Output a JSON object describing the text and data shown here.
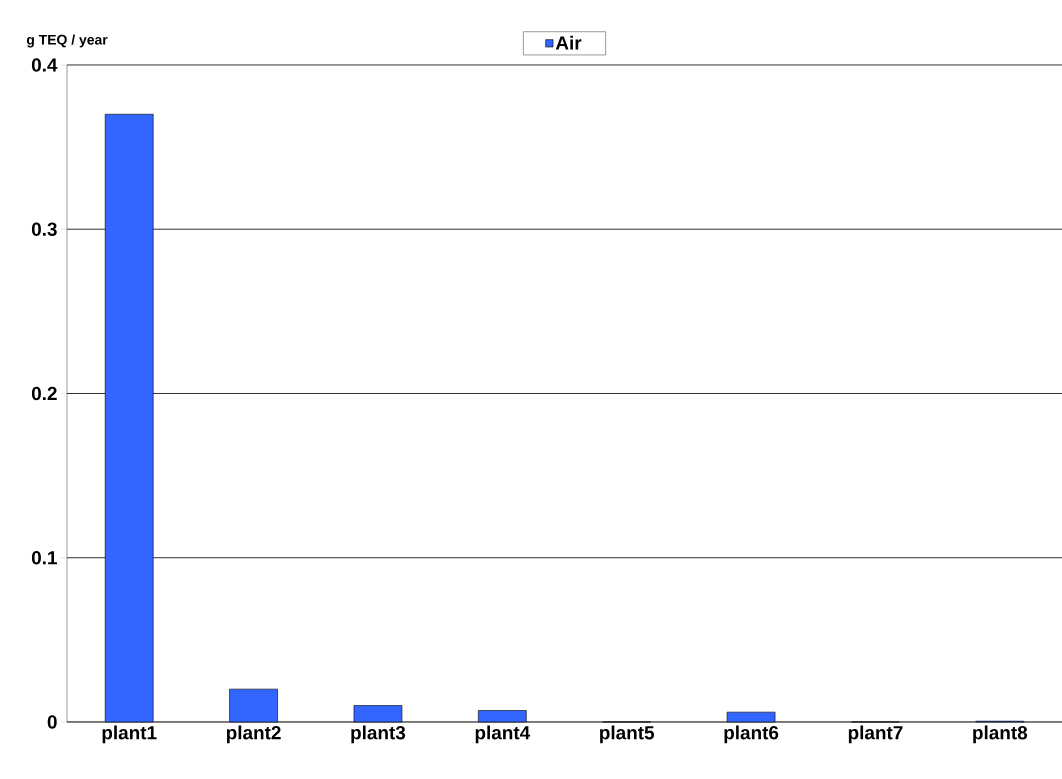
{
  "chart_data": {
    "type": "bar",
    "ylabel": "g TEQ / year",
    "categories": [
      "plant1",
      "plant2",
      "plant3",
      "plant4",
      "plant5",
      "plant6",
      "plant7",
      "plant8"
    ],
    "series": [
      {
        "name": "Air",
        "color": "#3366ff",
        "values": [
          0.37,
          0.02,
          0.01,
          0.007,
          0,
          0.006,
          0,
          0.0005
        ]
      }
    ],
    "ylim": [
      0,
      0.4
    ],
    "yticks": [
      0,
      0.1,
      0.2,
      0.3,
      0.4
    ],
    "grid": "y",
    "legend": "top"
  }
}
